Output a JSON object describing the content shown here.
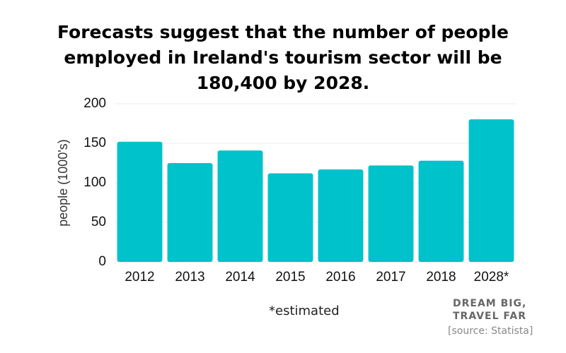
{
  "chart_data": {
    "type": "bar",
    "title": "Forecasts suggest that the number of people employed in Ireland's tourism sector will be 180,400 by 2028.",
    "y_label": "people (1000's)",
    "categories": [
      "2012",
      "2013",
      "2014",
      "2015",
      "2016",
      "2017",
      "2018",
      "2028*"
    ],
    "values": [
      152,
      125,
      141,
      112,
      117,
      122,
      128,
      180.4
    ],
    "color": "#00c2cb",
    "ylim": [
      0,
      200
    ],
    "yticks": [
      0,
      50,
      100,
      150,
      200
    ],
    "grid": true,
    "footnote": "*estimated",
    "brand": [
      "DREAM BIG,",
      "TRAVEL FAR"
    ],
    "source": "[source: Statista]"
  }
}
